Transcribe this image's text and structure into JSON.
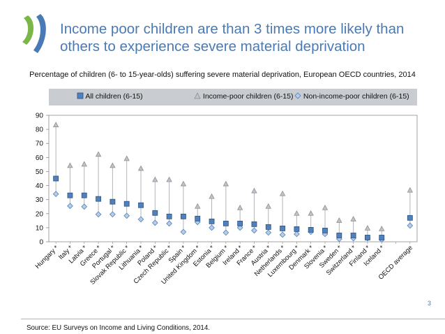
{
  "slide": {
    "title": "Income poor children are than 3 times more likely than others to experience severe material deprivation",
    "source": "Source: EU Surveys on Income and Living Conditions, 2014.",
    "page_number": "3",
    "accent_color": "#4a7ab5"
  },
  "chart_data": {
    "type": "scatter",
    "title": "Percentage of children (6- to 15-year-olds) suffering severe material deprivation, European OECD countries, 2014",
    "xlabel": "",
    "ylabel": "",
    "ylim": [
      0,
      90
    ],
    "yticks": [
      0,
      10,
      20,
      30,
      40,
      50,
      60,
      70,
      80,
      90
    ],
    "grid": false,
    "legend_position": "top",
    "categories": [
      "Hungary *",
      "Italy *",
      "Latvia *",
      "Greece *",
      "Portugal *",
      "Slovak Republic *",
      "Lithuania *",
      "Poland *",
      "Czech Republic *",
      "Spain *",
      "United Kingdom *",
      "Estonia *",
      "Belgium *",
      "Ireland *",
      "France *",
      "Austria *",
      "Netherlands *",
      "Luxembourg *",
      "Denmark *",
      "Slovenia *",
      "Sweden *",
      "Switzerland *",
      "Finland *",
      "Iceland *",
      "",
      "OECD average"
    ],
    "series": [
      {
        "name": "All children (6-15)",
        "marker": "square",
        "color": "#4f81bd",
        "values": [
          45,
          33,
          33,
          30.5,
          28.5,
          27,
          26,
          20.5,
          18,
          18,
          16.5,
          14.5,
          13,
          13,
          12.5,
          10.5,
          9.5,
          9,
          8.5,
          8,
          4.5,
          4.5,
          3,
          3,
          null,
          17
        ]
      },
      {
        "name": "Income-poor children (6-15)",
        "marker": "triangle",
        "color": "#c0c4c8",
        "values": [
          83,
          54,
          55,
          62,
          54,
          59,
          52,
          44,
          44,
          41,
          25,
          32,
          41,
          24,
          36,
          25,
          34,
          20,
          20,
          24,
          15,
          16,
          9.5,
          9,
          null,
          36.5
        ]
      },
      {
        "name": "Non-income-poor children (6-15)",
        "marker": "diamond",
        "color": "#b8cce4",
        "values": [
          34,
          25.5,
          25,
          19.5,
          19.5,
          18.5,
          16,
          13.5,
          13,
          7,
          14,
          10,
          6.5,
          10,
          8,
          6.5,
          5,
          5.5,
          7,
          5.5,
          2,
          2.5,
          2.5,
          1.5,
          null,
          11.5
        ]
      }
    ]
  }
}
